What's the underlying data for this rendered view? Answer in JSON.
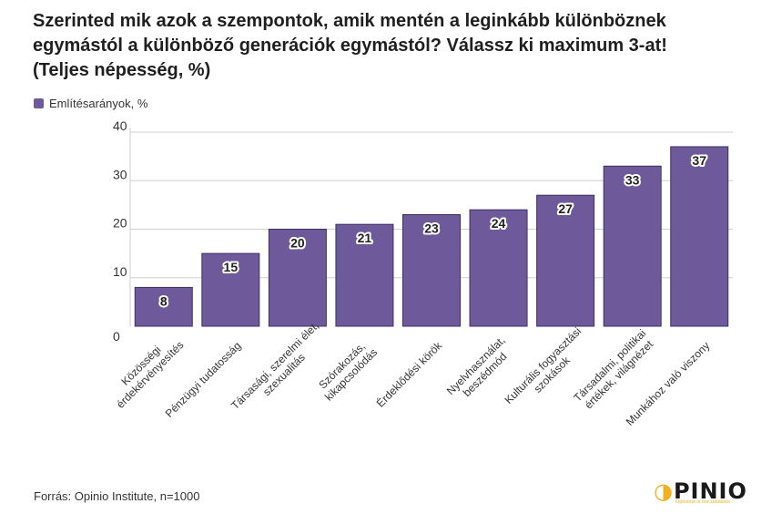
{
  "title": "Szerinted mik azok a szempontok, amik mentén a leginkább különböznek\negymástól a különböző generációk egymástól? Válassz ki maximum 3-at!\n(Teljes népesség, %)",
  "source": "Forrás: Opinio Institute, n=1000",
  "logo": {
    "word_rest": "PINIO",
    "tagline": "Opinions is our solutions"
  },
  "colors": {
    "bar": "#6e5a9b",
    "bar_stroke": "#3d3060",
    "grid": "#cfcfcf",
    "text": "#333333"
  },
  "chart_data": {
    "type": "bar",
    "legend_position": "top-left",
    "grid": true,
    "ylim": [
      0,
      40
    ],
    "yticks": [
      0,
      10,
      20,
      30,
      40
    ],
    "categories": [
      "Közösségi\nérdekérvényesítés",
      "Pénzügyi tudatosság",
      "Társasági, szerelmi élet,\nszexualitás",
      "Szórakozás,\nkikapcsolódás",
      "Érdeklődési körök",
      "Nyelvhasználat,\nbeszédmód",
      "Kulturális fogyasztási\nszokások",
      "Társadalmi, politikai\nértékek, világnézet",
      "Munkához való viszony"
    ],
    "series": [
      {
        "name": "Említésarányok, %",
        "values": [
          8,
          15,
          20,
          21,
          23,
          24,
          27,
          33,
          37
        ]
      }
    ]
  }
}
